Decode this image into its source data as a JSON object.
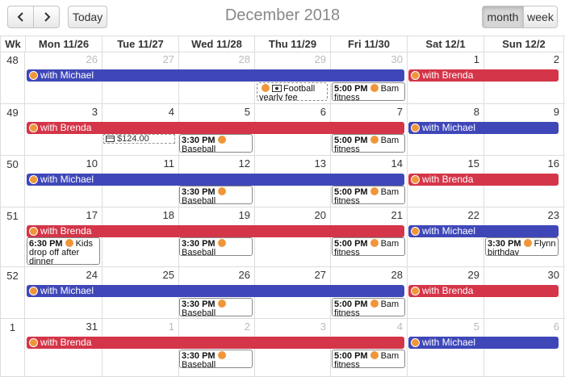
{
  "toolbar": {
    "prev_icon": "chevron-left-icon",
    "next_icon": "chevron-right-icon",
    "today_label": "Today",
    "month_label": "month",
    "week_label": "week",
    "title": "December 2018"
  },
  "headers": [
    "Wk",
    "Mon 11/26",
    "Tue 11/27",
    "Wed 11/28",
    "Thu 11/29",
    "Fri 11/30",
    "Sat 12/1",
    "Sun 12/2"
  ],
  "weeks": [
    {
      "wk": "48",
      "days": [
        "26",
        "27",
        "28",
        "29",
        "30",
        "1",
        "2"
      ],
      "other": [
        true,
        true,
        true,
        true,
        true,
        false,
        false
      ]
    },
    {
      "wk": "49",
      "days": [
        "3",
        "4",
        "5",
        "6",
        "7",
        "8",
        "9"
      ],
      "other": [
        false,
        false,
        false,
        false,
        false,
        false,
        false
      ]
    },
    {
      "wk": "50",
      "days": [
        "10",
        "11",
        "12",
        "13",
        "14",
        "15",
        "16"
      ],
      "other": [
        false,
        false,
        false,
        false,
        false,
        false,
        false
      ]
    },
    {
      "wk": "51",
      "days": [
        "17",
        "18",
        "19",
        "20",
        "21",
        "22",
        "23"
      ],
      "other": [
        false,
        false,
        false,
        false,
        false,
        false,
        false
      ]
    },
    {
      "wk": "52",
      "days": [
        "24",
        "25",
        "26",
        "27",
        "28",
        "29",
        "30"
      ],
      "other": [
        false,
        false,
        false,
        false,
        false,
        false,
        false
      ]
    },
    {
      "wk": "1",
      "days": [
        "31",
        "1",
        "2",
        "3",
        "4",
        "5",
        "6"
      ],
      "other": [
        false,
        true,
        true,
        true,
        true,
        true,
        true
      ]
    }
  ],
  "events": {
    "w0_michael": "with Michael",
    "w0_brenda": "with Brenda",
    "w0_football": "Football yearly fee",
    "w0_bam_time": "5:00 PM",
    "w0_bam_title": "Bam fitness",
    "w1_brenda": "with Brenda",
    "w1_michael": "with Michael",
    "w1_money": "$124.00",
    "w1_base_time": "3:30 PM",
    "w1_base_title": "Baseball",
    "w1_bam_time": "5:00 PM",
    "w1_bam_title": "Bam fitness",
    "w2_michael": "with Michael",
    "w2_brenda": "with Brenda",
    "w2_base_time": "3:30 PM",
    "w2_base_title": "Baseball",
    "w2_bam_time": "5:00 PM",
    "w2_bam_title": "Bam fitness",
    "w3_brenda": "with Brenda",
    "w3_michael": "with Michael",
    "w3_kids_time": "6:30 PM",
    "w3_kids_title": "Kids drop off after dinner",
    "w3_base_time": "3:30 PM",
    "w3_base_title": "Baseball",
    "w3_bam_time": "5:00 PM",
    "w3_bam_title": "Bam fitness",
    "w3_flynn_time": "3:30 PM",
    "w3_flynn_title": "Flynn birthday",
    "w4_michael": "with Michael",
    "w4_brenda": "with Brenda",
    "w4_base_time": "3:30 PM",
    "w4_base_title": "Baseball",
    "w4_bam_time": "5:00 PM",
    "w4_bam_title": "Bam fitness",
    "w5_brenda": "with Brenda",
    "w5_michael": "with Michael",
    "w5_base_time": "3:30 PM",
    "w5_base_title": "Baseball",
    "w5_bam_time": "5:00 PM",
    "w5_bam_title": "Bam fitness"
  },
  "colors": {
    "michael_bar": "#3f47b8",
    "brenda_bar": "#d43548",
    "event_dot": "#f0963a"
  }
}
